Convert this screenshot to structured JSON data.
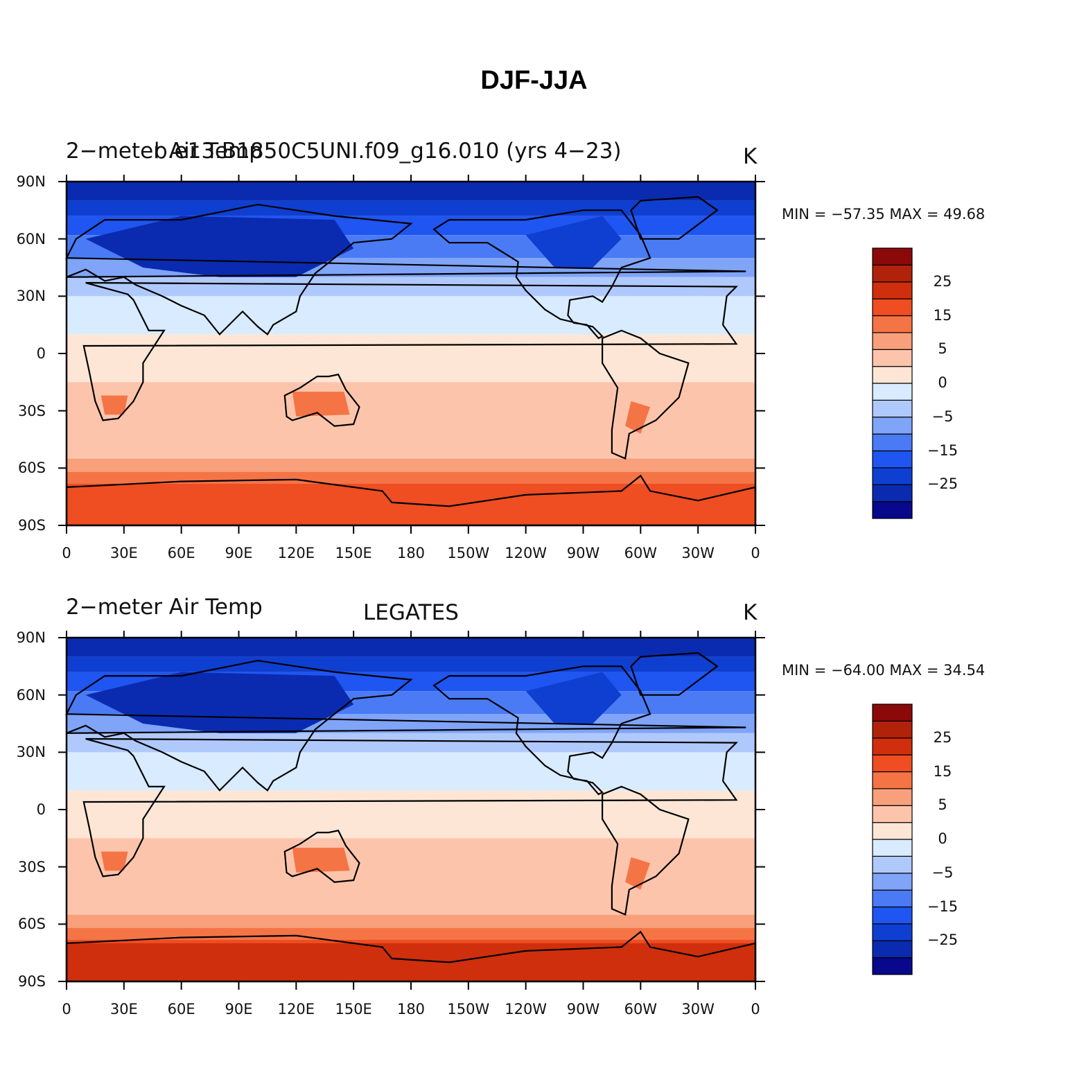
{
  "figure_title": "DJF-JJA",
  "colors": {
    "scale": [
      "#08088c",
      "#0a2bb0",
      "#0e3fd0",
      "#1f55f0",
      "#4a7bf5",
      "#7fa4f8",
      "#b0c9fc",
      "#d8ebff",
      "#fde6d5",
      "#fcc5ab",
      "#f8a07b",
      "#f57446",
      "#ef4d22",
      "#cf2f0c",
      "#b0220a",
      "#8b0909"
    ],
    "coast": "#000000"
  },
  "panels": [
    {
      "left_label": "2−meter Air Temp",
      "center_label": "b.e13.B1850C5UNI.f09_g16.010 (yrs 4−23)",
      "right_label": "K",
      "min_max": "MIN = −57.35  MAX =   49.68"
    },
    {
      "left_label": "2−meter Air Temp",
      "center_label": "LEGATES",
      "right_label": "K",
      "min_max": "MIN = −64.00  MAX =   34.54"
    }
  ],
  "axes": {
    "y_ticks": [
      "90N",
      "60N",
      "30N",
      "0",
      "30S",
      "60S",
      "90S"
    ],
    "x_ticks": [
      "0",
      "30E",
      "60E",
      "90E",
      "120E",
      "150E",
      "180",
      "150W",
      "120W",
      "90W",
      "60W",
      "30W",
      "0"
    ],
    "colorbar_labels": [
      "25",
      "15",
      "5",
      "0",
      "−5",
      "−15",
      "−25"
    ]
  },
  "chart_data": {
    "type": "heatmap",
    "title": "DJF-JJA",
    "variable": "2-meter Air Temp",
    "units": "K",
    "x_range": [
      0,
      360
    ],
    "y_range": [
      -90,
      90
    ],
    "contour_levels": [
      -35,
      -30,
      -25,
      -20,
      -15,
      -10,
      -5,
      -2,
      0,
      2,
      5,
      10,
      15,
      20,
      25,
      30
    ],
    "panels": [
      {
        "name": "b.e13.B1850C5UNI.f09_g16.010 (yrs 4−23)",
        "min": -57.35,
        "max": 49.68
      },
      {
        "name": "LEGATES",
        "min": -64.0,
        "max": 34.54
      }
    ]
  }
}
